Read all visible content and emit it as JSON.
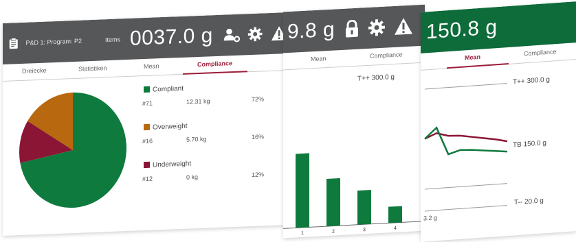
{
  "colors": {
    "compliant": "#0f7a3e",
    "overweight": "#b8680f",
    "underweight": "#8b1535",
    "header_dark": "#555759",
    "header_green": "#0e6b3a",
    "accent": "#9c1d3a",
    "trend_red": "#8b1535",
    "trend_green": "#0f7a3e"
  },
  "panel1": {
    "header": {
      "clipboard_icon": "clipboard-icon",
      "program": "P&D 1: Program: P2",
      "items_label": "Items",
      "weight": "0037.0 g",
      "user_settings_icon": "user-settings-icon",
      "gear_icon": "gear-icon",
      "warning_icon": "warning-icon"
    },
    "tabs": [
      "Dreiecke",
      "Statistiken",
      "Mean",
      "Compliance"
    ],
    "legend": [
      {
        "label": "Compliant",
        "count": "#71",
        "weight": "12.31 kg",
        "percent": "72%"
      },
      {
        "label": "Overweight",
        "count": "#16",
        "weight": "5.70 kg",
        "percent": "16%"
      },
      {
        "label": "Underweight",
        "count": "#12",
        "weight": "0 kg",
        "percent": "12%"
      }
    ]
  },
  "panel2": {
    "header": {
      "weight": "9.8 g",
      "lock_icon": "lock-icon",
      "gear_icon": "gear-icon",
      "warning_icon": "warning-icon"
    },
    "tabs": [
      "Mean",
      "Compliance"
    ],
    "limit_label": "T++ 300.0 g",
    "bar_ticks": [
      "1",
      "2",
      "3",
      "4"
    ]
  },
  "panel3": {
    "header": {
      "weight": "150.8 g"
    },
    "tabs": [
      "Mean",
      "Compliance"
    ],
    "limit_upper": "T++ 300.0 g",
    "limit_target": "TB 150.0 g",
    "limit_lower": "T-- 20.0 g",
    "corner_label": "3.2 g"
  },
  "chart_data": [
    {
      "type": "pie",
      "categories": [
        "Compliant",
        "Overweight",
        "Underweight"
      ],
      "values": [
        72,
        16,
        12
      ]
    },
    {
      "type": "bar",
      "categories": [
        "1",
        "2",
        "3",
        "4"
      ],
      "values": [
        100,
        64,
        46,
        22
      ]
    },
    {
      "type": "line",
      "series": [
        {
          "values": [
            0.55,
            0.62,
            0.57,
            0.56,
            0.53,
            0.5,
            0.47,
            0.43
          ]
        },
        {
          "values": [
            0.55,
            0.7,
            0.3,
            0.35,
            0.34,
            0.32,
            0.3,
            0.28
          ]
        }
      ]
    }
  ]
}
